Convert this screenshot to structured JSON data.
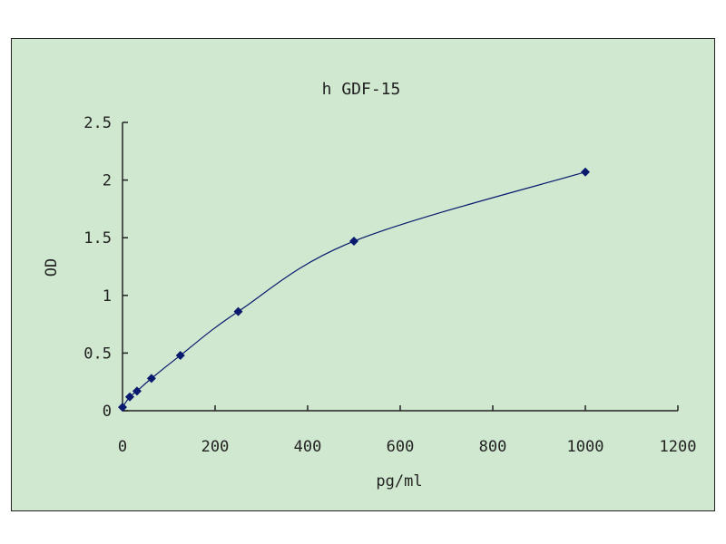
{
  "chart_data": {
    "type": "scatter",
    "title": "h GDF-15",
    "xlabel": "pg/ml",
    "ylabel": "OD",
    "xlim": [
      0,
      1200
    ],
    "ylim": [
      0,
      2.5
    ],
    "x_ticks": [
      "0",
      "200",
      "400",
      "600",
      "800",
      "1000",
      "1200"
    ],
    "y_ticks": [
      "0",
      "0.5",
      "1",
      "1.5",
      "2",
      "2.5"
    ],
    "grid": false,
    "legend": "none",
    "series": [
      {
        "x": [
          0,
          15.6,
          31.25,
          62.5,
          125,
          250,
          500,
          1000
        ],
        "y": [
          0.03,
          0.12,
          0.17,
          0.28,
          0.48,
          0.86,
          1.47,
          2.07
        ],
        "marker": "diamond",
        "line": "smooth"
      }
    ],
    "colors": {
      "background": "#cfe8cf",
      "series": "#0a1a6e",
      "axis": "#222222"
    }
  }
}
